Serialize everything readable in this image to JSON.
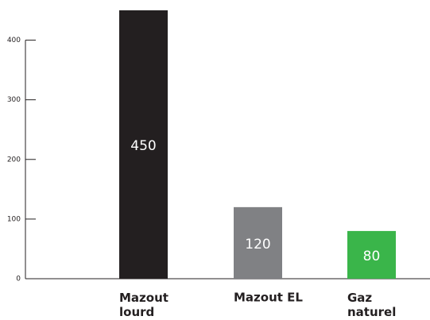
{
  "chart_data": {
    "type": "bar",
    "categories": [
      "Mazout lourd",
      "Mazout EL",
      "Gaz naturel"
    ],
    "values": [
      450,
      120,
      80
    ],
    "colors": [
      "#231f20",
      "#808184",
      "#3ab54a"
    ],
    "ylim": [
      0,
      450
    ],
    "yticks": [
      0,
      100,
      200,
      300,
      400
    ]
  }
}
